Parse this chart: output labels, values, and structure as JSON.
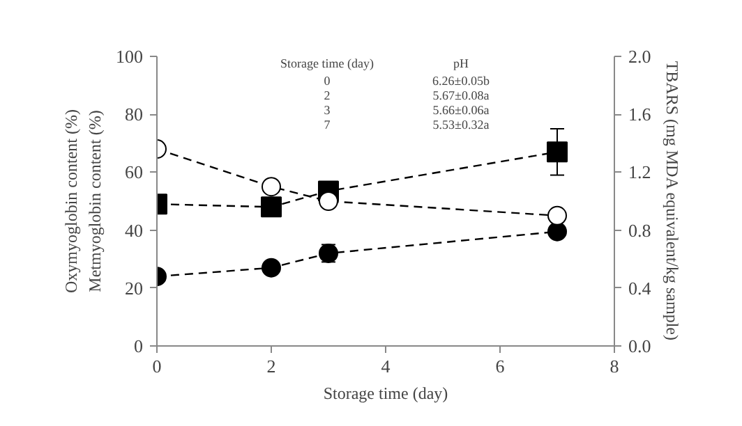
{
  "chart_data": {
    "type": "line",
    "xlabel": "Storage time (day)",
    "ylabel": "Oxymyoglobin content (%)\nMetmyoglobin content (%)",
    "y2label": "TBARS (mg MDA equivalent/kg sample)",
    "x": [
      0,
      2,
      3,
      7
    ],
    "xlim": [
      0,
      8
    ],
    "xticks": [
      0,
      2,
      4,
      6,
      8
    ],
    "ylim": [
      0,
      100
    ],
    "yticks": [
      0,
      20,
      40,
      60,
      80,
      100
    ],
    "y2lim": [
      0,
      2
    ],
    "y2ticks": [
      {
        "value": 0,
        "label": "0.0"
      },
      {
        "value": 0.4,
        "label": "0.4"
      },
      {
        "value": 0.8,
        "label": "0.8"
      },
      {
        "value": 1.2,
        "label": "1.2"
      },
      {
        "value": 1.6,
        "label": "1.6"
      },
      {
        "value": 2,
        "label": "2.0"
      }
    ],
    "line_style": "dashed",
    "series": [
      {
        "color": "#ffffff",
        "values": [
          68,
          55,
          50,
          45
        ],
        "marker": "circle"
      },
      {
        "color": "#000000",
        "values": [
          24,
          27,
          32,
          39.5
        ],
        "marker": "circle",
        "errors": [
          null,
          null,
          3,
          null
        ]
      },
      {
        "color": "#000000",
        "values": [
          0.98,
          0.96,
          1.07,
          1.34
        ],
        "marker": "square",
        "axis": "y2",
        "errors": [
          null,
          null,
          null,
          0.16
        ]
      }
    ],
    "annotations": [
      "Storage time (day)",
      "pH",
      "0",
      "6.26±0.05b",
      "2",
      "5.67±0.08a",
      "3",
      "5.66±0.06a",
      "7",
      "5.53±0.32a"
    ]
  }
}
